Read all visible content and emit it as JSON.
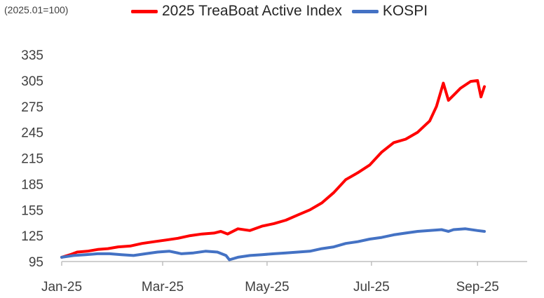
{
  "chart_data": {
    "type": "line",
    "title": "",
    "unit_note": "(2025.01=100)",
    "xlabel": "",
    "ylabel": "",
    "x_ticks": [
      "Jan-25",
      "Mar-25",
      "May-25",
      "Jul-25",
      "Sep-25"
    ],
    "y_ticks": [
      95,
      125,
      155,
      185,
      215,
      245,
      275,
      305,
      335
    ],
    "ylim": [
      95,
      335
    ],
    "xlim": [
      "2025-01-01",
      "2025-09-30"
    ],
    "grid": false,
    "legend_position": "top",
    "series": [
      {
        "name": "2025 TreaBoat Active Index",
        "color": "#ff0000",
        "points": [
          [
            "2025-01-01",
            100
          ],
          [
            "2025-01-06",
            103
          ],
          [
            "2025-01-10",
            106
          ],
          [
            "2025-01-16",
            107
          ],
          [
            "2025-01-22",
            109
          ],
          [
            "2025-01-28",
            110
          ],
          [
            "2025-02-03",
            112
          ],
          [
            "2025-02-10",
            113
          ],
          [
            "2025-02-17",
            116
          ],
          [
            "2025-02-24",
            118
          ],
          [
            "2025-03-03",
            120
          ],
          [
            "2025-03-10",
            122
          ],
          [
            "2025-03-17",
            125
          ],
          [
            "2025-03-24",
            127
          ],
          [
            "2025-03-31",
            128
          ],
          [
            "2025-04-04",
            130
          ],
          [
            "2025-04-08",
            127
          ],
          [
            "2025-04-14",
            133
          ],
          [
            "2025-04-21",
            131
          ],
          [
            "2025-04-28",
            136
          ],
          [
            "2025-05-05",
            139
          ],
          [
            "2025-05-12",
            143
          ],
          [
            "2025-05-19",
            149
          ],
          [
            "2025-05-26",
            155
          ],
          [
            "2025-06-02",
            163
          ],
          [
            "2025-06-09",
            175
          ],
          [
            "2025-06-16",
            190
          ],
          [
            "2025-06-23",
            198
          ],
          [
            "2025-06-30",
            207
          ],
          [
            "2025-07-07",
            222
          ],
          [
            "2025-07-14",
            233
          ],
          [
            "2025-07-21",
            237
          ],
          [
            "2025-07-28",
            245
          ],
          [
            "2025-08-04",
            258
          ],
          [
            "2025-08-08",
            275
          ],
          [
            "2025-08-12",
            302
          ],
          [
            "2025-08-15",
            282
          ],
          [
            "2025-08-19",
            290
          ],
          [
            "2025-08-22",
            296
          ],
          [
            "2025-08-25",
            300
          ],
          [
            "2025-08-28",
            304
          ],
          [
            "2025-09-01",
            305
          ],
          [
            "2025-09-03",
            286
          ],
          [
            "2025-09-05",
            298
          ]
        ]
      },
      {
        "name": "KOSPI",
        "color": "#4472c4",
        "points": [
          [
            "2025-01-01",
            100
          ],
          [
            "2025-01-08",
            102
          ],
          [
            "2025-01-15",
            103
          ],
          [
            "2025-01-22",
            104
          ],
          [
            "2025-01-29",
            104
          ],
          [
            "2025-02-05",
            103
          ],
          [
            "2025-02-12",
            102
          ],
          [
            "2025-02-19",
            104
          ],
          [
            "2025-02-26",
            106
          ],
          [
            "2025-03-05",
            107
          ],
          [
            "2025-03-12",
            104
          ],
          [
            "2025-03-19",
            105
          ],
          [
            "2025-03-26",
            107
          ],
          [
            "2025-04-02",
            106
          ],
          [
            "2025-04-07",
            102
          ],
          [
            "2025-04-09",
            97
          ],
          [
            "2025-04-14",
            100
          ],
          [
            "2025-04-21",
            102
          ],
          [
            "2025-04-28",
            103
          ],
          [
            "2025-05-05",
            104
          ],
          [
            "2025-05-12",
            105
          ],
          [
            "2025-05-19",
            106
          ],
          [
            "2025-05-26",
            107
          ],
          [
            "2025-06-02",
            110
          ],
          [
            "2025-06-09",
            112
          ],
          [
            "2025-06-16",
            116
          ],
          [
            "2025-06-23",
            118
          ],
          [
            "2025-06-30",
            121
          ],
          [
            "2025-07-07",
            123
          ],
          [
            "2025-07-14",
            126
          ],
          [
            "2025-07-21",
            128
          ],
          [
            "2025-07-28",
            130
          ],
          [
            "2025-08-04",
            131
          ],
          [
            "2025-08-11",
            132
          ],
          [
            "2025-08-15",
            130
          ],
          [
            "2025-08-18",
            132
          ],
          [
            "2025-08-25",
            133
          ],
          [
            "2025-09-01",
            131
          ],
          [
            "2025-09-05",
            130
          ]
        ]
      }
    ]
  }
}
